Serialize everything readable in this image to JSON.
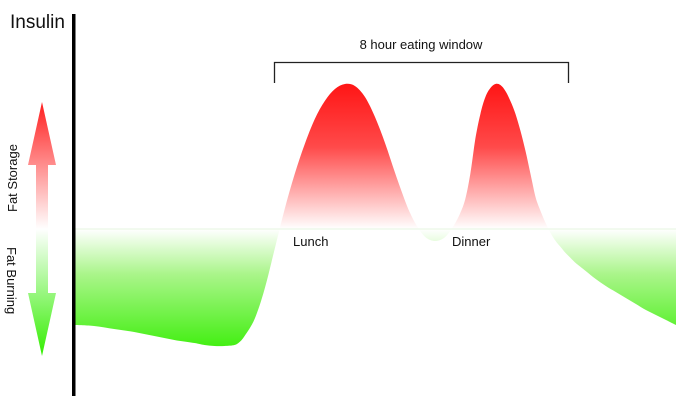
{
  "chart_data": {
    "type": "area",
    "title": "",
    "ylabel": "Insulin",
    "xlabel": "",
    "axis_labels": {
      "upper": "Fat Storage",
      "lower": "Fat Burning"
    },
    "bracket_label": "8 hour eating window",
    "meal_labels": [
      "Lunch",
      "Dinner"
    ],
    "baseline": 0,
    "ylim": [
      -130,
      145
    ],
    "xlim": [
      0,
      600
    ],
    "grid": false,
    "legend": "none",
    "series": [
      {
        "x": [
          0,
          20,
          40,
          60,
          80,
          100,
          120,
          130,
          140,
          150,
          160,
          165,
          170,
          180,
          190,
          200,
          210,
          220,
          230,
          240,
          250,
          260,
          270,
          280,
          290,
          300,
          310,
          320,
          330,
          335,
          340,
          345,
          350,
          355,
          360,
          365,
          370,
          375,
          380,
          385,
          390,
          395,
          400,
          405,
          410,
          415,
          420,
          425,
          430,
          435,
          440,
          445,
          450,
          455,
          460,
          465,
          470,
          475,
          480,
          485,
          490,
          495,
          500,
          510,
          520,
          530,
          540,
          550,
          560,
          570,
          580,
          590,
          600
        ],
        "values": [
          -96,
          -97,
          -100,
          -103,
          -107,
          -111,
          -114,
          -116,
          -117,
          -117,
          -116,
          -113,
          -107,
          -90,
          -60,
          -20,
          20,
          55,
          85,
          110,
          128,
          140,
          145,
          143,
          132,
          112,
          86,
          56,
          28,
          16,
          6,
          -2,
          -8,
          -11,
          -12,
          -11,
          -8,
          -2,
          6,
          16,
          30,
          55,
          90,
          115,
          132,
          141,
          145,
          144,
          138,
          128,
          115,
          98,
          78,
          55,
          32,
          18,
          6,
          -4,
          -12,
          -18,
          -24,
          -29,
          -34,
          -42,
          -50,
          -57,
          -63,
          -69,
          -75,
          -81,
          -86,
          -91,
          -96
        ]
      }
    ],
    "colors": {
      "storage_top": "#ff1212",
      "storage_bottom": "#ffffff",
      "burning_top": "#ffffff",
      "burning_bottom": "#33ee00",
      "axis": "#000000",
      "bracket": "#222222",
      "upper_label": "#cc3333",
      "lower_label": "#44bb33"
    }
  }
}
